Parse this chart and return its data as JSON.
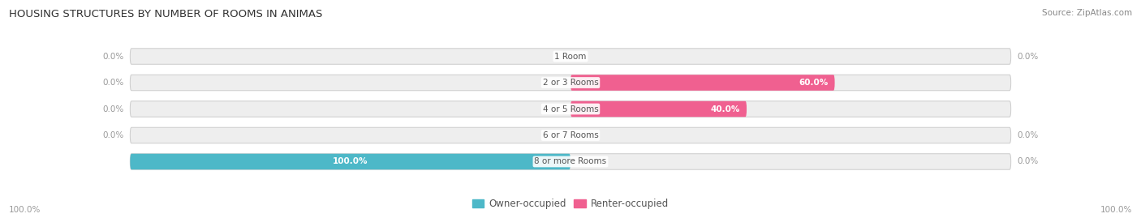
{
  "title": "HOUSING STRUCTURES BY NUMBER OF ROOMS IN ANIMAS",
  "source": "Source: ZipAtlas.com",
  "categories": [
    "1 Room",
    "2 or 3 Rooms",
    "4 or 5 Rooms",
    "6 or 7 Rooms",
    "8 or more Rooms"
  ],
  "owner_values": [
    0.0,
    0.0,
    0.0,
    0.0,
    100.0
  ],
  "renter_values": [
    0.0,
    60.0,
    40.0,
    0.0,
    0.0
  ],
  "owner_color": "#4db8c8",
  "renter_color": "#f06090",
  "bar_bg_color": "#eeeeee",
  "bar_bg_edge_color": "#cccccc",
  "fig_bg_color": "#ffffff",
  "title_fontsize": 9.5,
  "label_fontsize": 7.5,
  "value_label_fontsize": 7.5,
  "legend_fontsize": 8.5,
  "source_fontsize": 7.5,
  "axis_label_left": "100.0%",
  "axis_label_right": "100.0%",
  "xlim_left": -100,
  "xlim_right": 100,
  "bar_height": 0.6,
  "center_label_color": "#555555",
  "zero_label_color": "#999999",
  "inside_label_color": "#ffffff"
}
